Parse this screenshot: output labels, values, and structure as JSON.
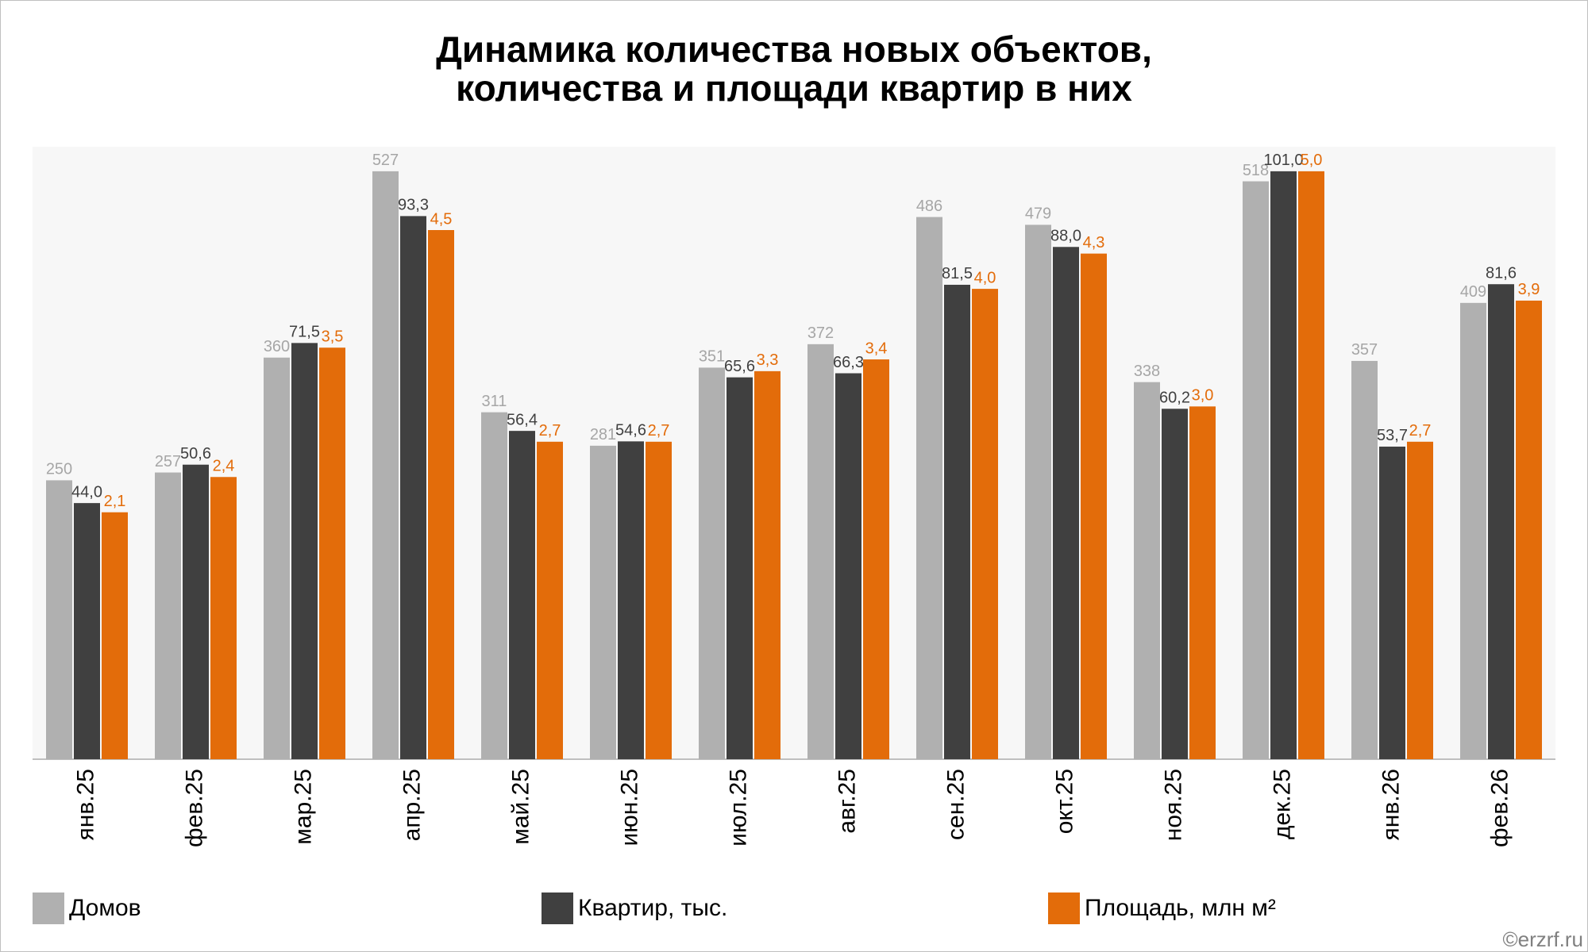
{
  "chart_data": {
    "type": "bar",
    "title": "Динамика количества новых объектов,",
    "subtitle": "количества и площади квартир в них",
    "credit": "©erzrf.ru",
    "categories": [
      "янв.25",
      "фев.25",
      "мар.25",
      "апр.25",
      "май.25",
      "июн.25",
      "июл.25",
      "авг.25",
      "сен.25",
      "окт.25",
      "ноя.25",
      "дек.25",
      "янв.26",
      "фев.26"
    ],
    "series": [
      {
        "name": "Домов",
        "color": "#b0b0b0",
        "label_color": "#a6a6a6",
        "values": [
          250,
          257,
          360,
          527,
          311,
          281,
          351,
          372,
          486,
          479,
          338,
          518,
          357,
          409
        ]
      },
      {
        "name": "Квартир, тыс.",
        "color": "#404040",
        "label_color": "#404040",
        "values": [
          44.0,
          50.6,
          71.5,
          93.3,
          56.4,
          54.6,
          65.6,
          66.3,
          81.5,
          88.0,
          60.2,
          101.0,
          53.7,
          81.6
        ],
        "value_labels": [
          "44,0",
          "50,6",
          "71,5",
          "93,3",
          "56,4",
          "54,6",
          "65,6",
          "66,3",
          "81,5",
          "88,0",
          "60,2",
          "101,0",
          "53,7",
          "81,6"
        ]
      },
      {
        "name": "Площадь, млн м²",
        "color": "#e36c0a",
        "label_color": "#e36c0a",
        "values": [
          2.1,
          2.4,
          3.5,
          4.5,
          2.7,
          2.7,
          3.3,
          3.4,
          4.0,
          4.3,
          3.0,
          5.0,
          2.7,
          3.9
        ],
        "value_labels": [
          "2,1",
          "2,4",
          "3,5",
          "4,5",
          "2,7",
          "2,7",
          "3,3",
          "3,4",
          "4,0",
          "4,3",
          "3,0",
          "5,0",
          "2,7",
          "3,9"
        ]
      }
    ]
  }
}
